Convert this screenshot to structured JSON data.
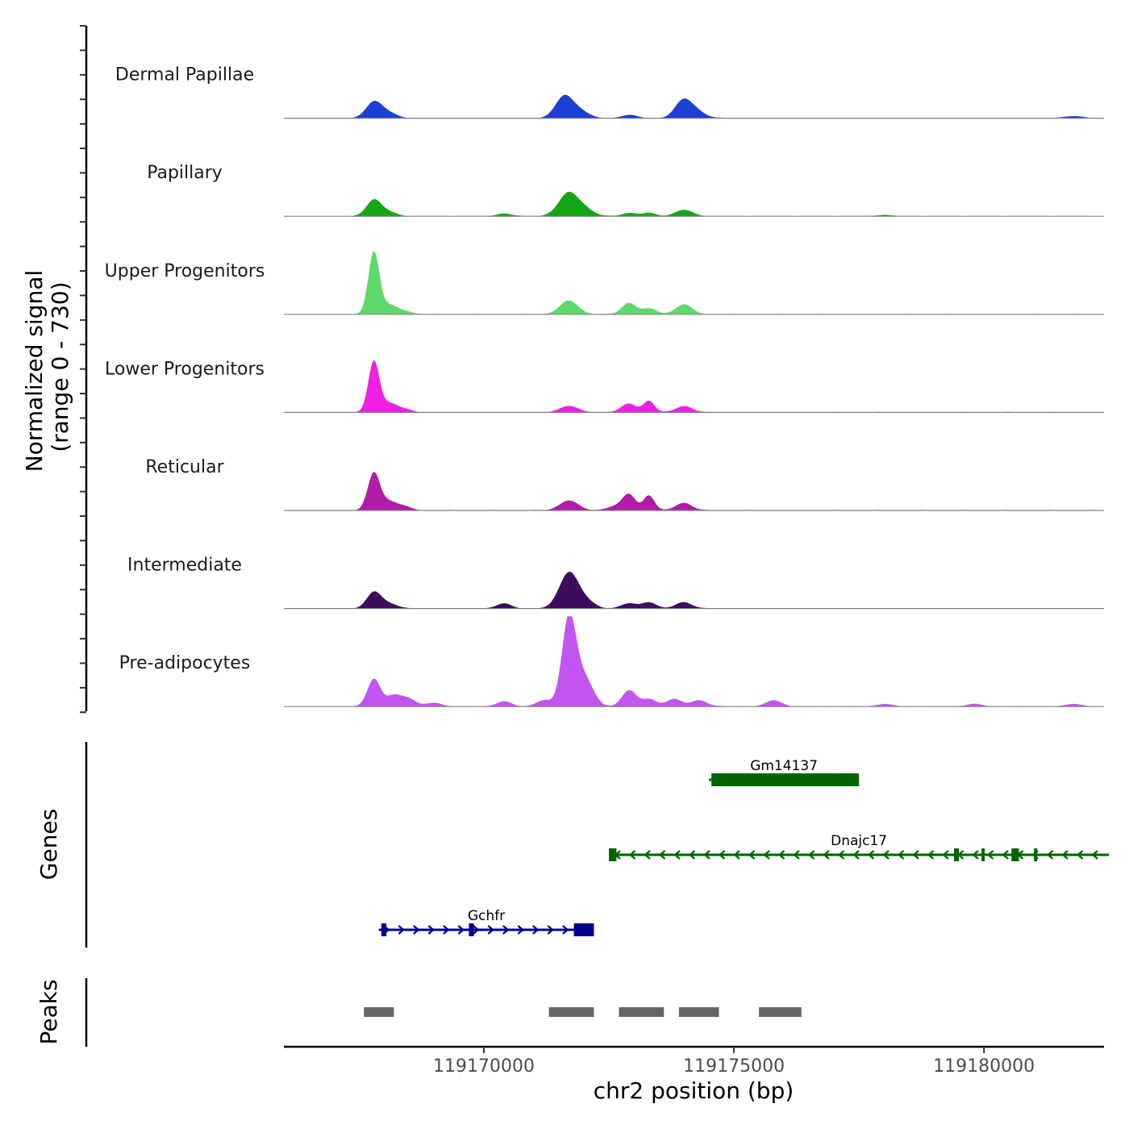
{
  "chart_data": {
    "type": "area",
    "title": "",
    "chromosome": "chr2",
    "xlabel": "chr2 position (bp)",
    "ylabel": "Normalized signal",
    "ylabel_range": "(range 0 - 730)",
    "ylim": [
      0,
      730
    ],
    "xlim": [
      119166000,
      119182400
    ],
    "x_ticks": [
      119170000,
      119175000,
      119180000
    ],
    "x_tick_labels": [
      "119170000",
      "119175000",
      "119180000"
    ],
    "colors": {
      "baseline": "#808080",
      "axis": "#000000",
      "gene_plus": "#00008b",
      "gene_minus": "#006400",
      "peak": "#666666"
    },
    "series": [
      {
        "name": "Dermal Papillae",
        "color": "#1c3fd6",
        "peaks": [
          {
            "center": 119167800,
            "height": 130,
            "width": 160
          },
          {
            "center": 119168100,
            "height": 40,
            "width": 160
          },
          {
            "center": 119171600,
            "height": 170,
            "width": 170
          },
          {
            "center": 119171900,
            "height": 60,
            "width": 180
          },
          {
            "center": 119172900,
            "height": 25,
            "width": 150
          },
          {
            "center": 119174000,
            "height": 150,
            "width": 170
          },
          {
            "center": 119174300,
            "height": 40,
            "width": 160
          },
          {
            "center": 119181800,
            "height": 15,
            "width": 180
          }
        ]
      },
      {
        "name": "Papillary",
        "color": "#14a614",
        "peaks": [
          {
            "center": 119167800,
            "height": 130,
            "width": 150
          },
          {
            "center": 119168100,
            "height": 30,
            "width": 160
          },
          {
            "center": 119170400,
            "height": 20,
            "width": 150
          },
          {
            "center": 119171700,
            "height": 190,
            "width": 200
          },
          {
            "center": 119172050,
            "height": 40,
            "width": 170
          },
          {
            "center": 119172900,
            "height": 25,
            "width": 150
          },
          {
            "center": 119173300,
            "height": 25,
            "width": 140
          },
          {
            "center": 119174000,
            "height": 50,
            "width": 170
          },
          {
            "center": 119178000,
            "height": 10,
            "width": 150
          }
        ]
      },
      {
        "name": "Upper Progenitors",
        "color": "#5ed96b",
        "peaks": [
          {
            "center": 119167800,
            "height": 500,
            "width": 110
          },
          {
            "center": 119168100,
            "height": 70,
            "width": 150
          },
          {
            "center": 119168400,
            "height": 25,
            "width": 150
          },
          {
            "center": 119171700,
            "height": 110,
            "width": 180
          },
          {
            "center": 119172900,
            "height": 90,
            "width": 140
          },
          {
            "center": 119173300,
            "height": 45,
            "width": 150
          },
          {
            "center": 119174000,
            "height": 80,
            "width": 160
          }
        ]
      },
      {
        "name": "Lower Progenitors",
        "color": "#f01ee6",
        "peaks": [
          {
            "center": 119167800,
            "height": 410,
            "width": 110
          },
          {
            "center": 119168100,
            "height": 70,
            "width": 150
          },
          {
            "center": 119168400,
            "height": 25,
            "width": 150
          },
          {
            "center": 119171700,
            "height": 50,
            "width": 180
          },
          {
            "center": 119172900,
            "height": 70,
            "width": 150
          },
          {
            "center": 119173300,
            "height": 90,
            "width": 110
          },
          {
            "center": 119174000,
            "height": 50,
            "width": 160
          }
        ]
      },
      {
        "name": "Reticular",
        "color": "#b21aa8",
        "peaks": [
          {
            "center": 119167800,
            "height": 300,
            "width": 120
          },
          {
            "center": 119168100,
            "height": 70,
            "width": 150
          },
          {
            "center": 119168400,
            "height": 30,
            "width": 150
          },
          {
            "center": 119171700,
            "height": 80,
            "width": 180
          },
          {
            "center": 119172600,
            "height": 30,
            "width": 150
          },
          {
            "center": 119172900,
            "height": 130,
            "width": 130
          },
          {
            "center": 119173300,
            "height": 120,
            "width": 110
          },
          {
            "center": 119174000,
            "height": 60,
            "width": 160
          }
        ]
      },
      {
        "name": "Intermediate",
        "color": "#3c0d5c",
        "peaks": [
          {
            "center": 119167800,
            "height": 130,
            "width": 140
          },
          {
            "center": 119168100,
            "height": 40,
            "width": 160
          },
          {
            "center": 119170400,
            "height": 40,
            "width": 140
          },
          {
            "center": 119171700,
            "height": 290,
            "width": 190
          },
          {
            "center": 119172050,
            "height": 50,
            "width": 170
          },
          {
            "center": 119172900,
            "height": 40,
            "width": 150
          },
          {
            "center": 119173300,
            "height": 50,
            "width": 140
          },
          {
            "center": 119174000,
            "height": 50,
            "width": 160
          }
        ]
      },
      {
        "name": "Pre-adipocytes",
        "color": "#c255f0",
        "peaks": [
          {
            "center": 119167800,
            "height": 220,
            "width": 130
          },
          {
            "center": 119168200,
            "height": 90,
            "width": 150
          },
          {
            "center": 119168500,
            "height": 60,
            "width": 140
          },
          {
            "center": 119169000,
            "height": 30,
            "width": 150
          },
          {
            "center": 119170400,
            "height": 40,
            "width": 150
          },
          {
            "center": 119171200,
            "height": 50,
            "width": 150
          },
          {
            "center": 119171700,
            "height": 700,
            "width": 140
          },
          {
            "center": 119172000,
            "height": 230,
            "width": 180
          },
          {
            "center": 119172900,
            "height": 130,
            "width": 140
          },
          {
            "center": 119173300,
            "height": 60,
            "width": 150
          },
          {
            "center": 119173800,
            "height": 60,
            "width": 150
          },
          {
            "center": 119174300,
            "height": 50,
            "width": 160
          },
          {
            "center": 119175800,
            "height": 50,
            "width": 150
          },
          {
            "center": 119178000,
            "height": 20,
            "width": 150
          },
          {
            "center": 119179800,
            "height": 20,
            "width": 150
          },
          {
            "center": 119181800,
            "height": 20,
            "width": 150
          }
        ]
      }
    ],
    "genes_track_label": "Genes",
    "genes": [
      {
        "name": "Gm14137",
        "strand": "-",
        "start": 119174500,
        "end": 119177500,
        "row": 0,
        "exons": [
          [
            119174550,
            119177500
          ]
        ]
      },
      {
        "name": "Dnajc17",
        "strand": "-",
        "start": 119172500,
        "end": 119182500,
        "row": 1,
        "exons": [
          [
            119172500,
            119172650
          ],
          [
            119179400,
            119179500
          ],
          [
            119179950,
            119180010
          ],
          [
            119180550,
            119180700
          ],
          [
            119181000,
            119181040
          ]
        ]
      },
      {
        "name": "Gchfr",
        "strand": "+",
        "start": 119167900,
        "end": 119172200,
        "row": 2,
        "exons": [
          [
            119167950,
            119168050
          ],
          [
            119169700,
            119169800
          ],
          [
            119171800,
            119172200
          ]
        ]
      }
    ],
    "peaks_track_label": "Peaks",
    "peak_regions": [
      [
        119167600,
        119168200
      ],
      [
        119171300,
        119172200
      ],
      [
        119172700,
        119173600
      ],
      [
        119173900,
        119174700
      ],
      [
        119175500,
        119176350
      ]
    ]
  }
}
